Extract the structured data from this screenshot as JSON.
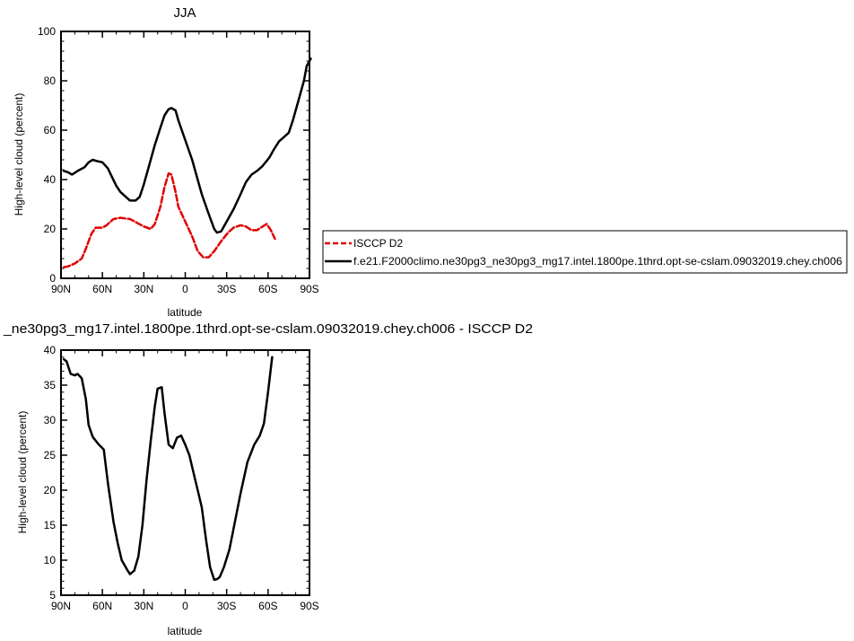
{
  "chart_data": [
    {
      "type": "line",
      "title": "JJA",
      "xlabel": "latitude",
      "ylabel": "High-level cloud (percent)",
      "xlim": [
        -90,
        90
      ],
      "ylim": [
        0,
        100
      ],
      "x_ticks": [
        {
          "value": -90,
          "label": "90N"
        },
        {
          "value": -60,
          "label": "60N"
        },
        {
          "value": -30,
          "label": "30N"
        },
        {
          "value": 0,
          "label": "0"
        },
        {
          "value": 30,
          "label": "30S"
        },
        {
          "value": 60,
          "label": "60S"
        },
        {
          "value": 90,
          "label": "90S"
        }
      ],
      "y_ticks": [
        0,
        20,
        40,
        60,
        80,
        100
      ],
      "legend_position": "right",
      "series": [
        {
          "name": "ISCCP D2",
          "color": "#e00000",
          "dash": "dashed",
          "points": [
            [
              -88,
              4.5
            ],
            [
              -85,
              4.8
            ],
            [
              -80,
              6
            ],
            [
              -75,
              8
            ],
            [
              -72,
              12
            ],
            [
              -68,
              18
            ],
            [
              -65,
              20.5
            ],
            [
              -60,
              20.5
            ],
            [
              -57,
              21.5
            ],
            [
              -52,
              24
            ],
            [
              -47,
              24.5
            ],
            [
              -40,
              24
            ],
            [
              -35,
              22.5
            ],
            [
              -30,
              21
            ],
            [
              -25,
              20
            ],
            [
              -22,
              22
            ],
            [
              -18,
              29
            ],
            [
              -15,
              37
            ],
            [
              -12,
              42.5
            ],
            [
              -10,
              42
            ],
            [
              -7,
              35
            ],
            [
              -5,
              29
            ],
            [
              0,
              23
            ],
            [
              5,
              17
            ],
            [
              9,
              11
            ],
            [
              13,
              8.5
            ],
            [
              17,
              8.5
            ],
            [
              21,
              11
            ],
            [
              26,
              15
            ],
            [
              31,
              18.5
            ],
            [
              35,
              20.5
            ],
            [
              40,
              21.5
            ],
            [
              44,
              21
            ],
            [
              48,
              19.5
            ],
            [
              52,
              19.5
            ],
            [
              56,
              21
            ],
            [
              59,
              22
            ],
            [
              62,
              19.5
            ],
            [
              65,
              16
            ]
          ]
        },
        {
          "name": "f.e21.F2000climo.ne30pg3_ne30pg3_mg17.intel.1800pe.1thrd.opt-se-cslam.09032019.chey.ch006",
          "color": "#000000",
          "dash": "solid",
          "points": [
            [
              -88,
              43.5
            ],
            [
              -85,
              43
            ],
            [
              -82,
              42
            ],
            [
              -78,
              43.5
            ],
            [
              -73,
              45
            ],
            [
              -70,
              47
            ],
            [
              -67,
              48
            ],
            [
              -64,
              47.5
            ],
            [
              -60,
              47
            ],
            [
              -56,
              44.5
            ],
            [
              -53,
              41
            ],
            [
              -50,
              37.5
            ],
            [
              -47,
              35
            ],
            [
              -43,
              33
            ],
            [
              -40,
              31.5
            ],
            [
              -36,
              31.5
            ],
            [
              -33,
              33
            ],
            [
              -30,
              38
            ],
            [
              -25,
              48
            ],
            [
              -22,
              54
            ],
            [
              -18,
              61
            ],
            [
              -15,
              66
            ],
            [
              -12,
              68.5
            ],
            [
              -10,
              69
            ],
            [
              -7,
              68
            ],
            [
              -5,
              64
            ],
            [
              0,
              56
            ],
            [
              5,
              48
            ],
            [
              8,
              42
            ],
            [
              12,
              34
            ],
            [
              17,
              26
            ],
            [
              21,
              20
            ],
            [
              23,
              18.5
            ],
            [
              26,
              19
            ],
            [
              30,
              23
            ],
            [
              35,
              28
            ],
            [
              40,
              34
            ],
            [
              44,
              39
            ],
            [
              48,
              42
            ],
            [
              52,
              43.5
            ],
            [
              56,
              45.5
            ],
            [
              61,
              49
            ],
            [
              64,
              52
            ],
            [
              68,
              55.5
            ],
            [
              71,
              57
            ],
            [
              75,
              59
            ],
            [
              78,
              64
            ],
            [
              82,
              72
            ],
            [
              86,
              80
            ],
            [
              88,
              86
            ],
            [
              91,
              89
            ]
          ]
        }
      ]
    },
    {
      "type": "line",
      "title": "_ne30pg3_mg17.intel.1800pe.1thrd.opt-se-cslam.09032019.chey.ch006 - ISCCP D2",
      "xlabel": "latitude",
      "ylabel": "High-level cloud (percent)",
      "xlim": [
        -90,
        90
      ],
      "ylim": [
        5,
        40
      ],
      "x_ticks": [
        {
          "value": -90,
          "label": "90N"
        },
        {
          "value": -60,
          "label": "60N"
        },
        {
          "value": -30,
          "label": "30N"
        },
        {
          "value": 0,
          "label": "0"
        },
        {
          "value": 30,
          "label": "30S"
        },
        {
          "value": 60,
          "label": "60S"
        },
        {
          "value": 90,
          "label": "90S"
        }
      ],
      "y_ticks": [
        5,
        10,
        15,
        20,
        25,
        30,
        35,
        40
      ],
      "series": [
        {
          "color": "#000000",
          "dash": "solid",
          "points": [
            [
              -88,
              38.7
            ],
            [
              -86,
              38.4
            ],
            [
              -83,
              36.6
            ],
            [
              -80,
              36.4
            ],
            [
              -78,
              36.6
            ],
            [
              -75,
              36
            ],
            [
              -72,
              33
            ],
            [
              -70,
              29.3
            ],
            [
              -67,
              27.6
            ],
            [
              -63,
              26.6
            ],
            [
              -59,
              25.8
            ],
            [
              -56,
              21
            ],
            [
              -52,
              15.5
            ],
            [
              -49,
              12.5
            ],
            [
              -46,
              10
            ],
            [
              -42,
              8.6
            ],
            [
              -40,
              8
            ],
            [
              -37,
              8.5
            ],
            [
              -34,
              10.5
            ],
            [
              -31,
              15
            ],
            [
              -28,
              21.5
            ],
            [
              -25,
              27
            ],
            [
              -22,
              32
            ],
            [
              -20,
              34.5
            ],
            [
              -17,
              34.7
            ],
            [
              -15,
              31
            ],
            [
              -12,
              26.5
            ],
            [
              -9,
              26
            ],
            [
              -6,
              27.5
            ],
            [
              -3,
              27.8
            ],
            [
              0,
              26.5
            ],
            [
              3,
              25
            ],
            [
              6,
              22.5
            ],
            [
              9,
              20
            ],
            [
              12,
              17.5
            ],
            [
              15,
              13
            ],
            [
              18,
              9
            ],
            [
              21,
              7.2
            ],
            [
              23,
              7.3
            ],
            [
              25,
              7.6
            ],
            [
              28,
              9
            ],
            [
              32,
              11.5
            ],
            [
              36,
              15.5
            ],
            [
              40,
              19.5
            ],
            [
              45,
              24
            ],
            [
              50,
              26.5
            ],
            [
              54,
              27.8
            ],
            [
              57,
              29.5
            ],
            [
              60,
              34
            ],
            [
              63,
              39
            ]
          ]
        }
      ]
    }
  ]
}
